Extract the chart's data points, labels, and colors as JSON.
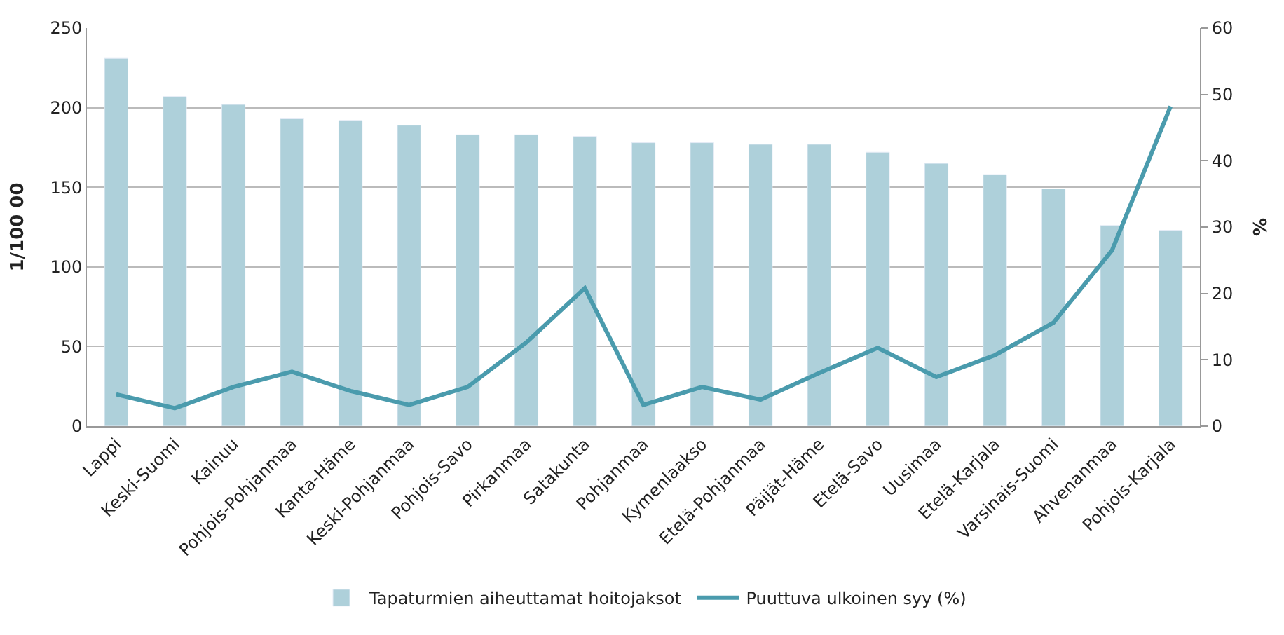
{
  "chart_data": {
    "type": "bar",
    "ylabel": "1/100 00",
    "y2label": "%",
    "categories": [
      "Lappi",
      "Keski-Suomi",
      "Kainuu",
      "Pohjois-Pohjanmaa",
      "Kanta-Häme",
      "Keski-Pohjanmaa",
      "Pohjois-Savo",
      "Pirkanmaa",
      "Satakunta",
      "Pohjanmaa",
      "Kymenlaakso",
      "Etelä-Pohjanmaa",
      "Päijät-Häme",
      "Etelä-Savo",
      "Uusimaa",
      "Etelä-Karjala",
      "Varsinais-Suomi",
      "Ahvenanmaa",
      "Pohjois-Karjala"
    ],
    "series": [
      {
        "name": "Tapaturmien aiheuttamat hoitojaksot",
        "color": "#aed0da",
        "values": [
          231,
          207,
          202,
          193,
          192,
          189,
          183,
          183,
          182,
          178,
          178,
          177,
          177,
          172,
          165,
          158,
          149,
          126,
          123
        ]
      },
      {
        "name": "Puuttuva ulkoinen syy (%)",
        "type": "line",
        "axis": "y2",
        "color": "#4a9bad",
        "values": [
          4.8,
          2.7,
          5.9,
          8.2,
          5.3,
          3.2,
          5.9,
          12.6,
          20.8,
          3.2,
          5.9,
          4.0,
          8.0,
          11.8,
          7.4,
          10.7,
          15.6,
          26.5,
          48.2
        ]
      }
    ],
    "ylim": [
      0,
      250
    ],
    "yticks": [
      0,
      50,
      100,
      150,
      200,
      250
    ],
    "y2lim": [
      0,
      60
    ],
    "y2ticks": [
      0,
      10,
      20,
      30,
      40,
      50,
      60
    ],
    "grid": "y",
    "legend": "bottom",
    "marker": "none",
    "line_style": "solid"
  }
}
